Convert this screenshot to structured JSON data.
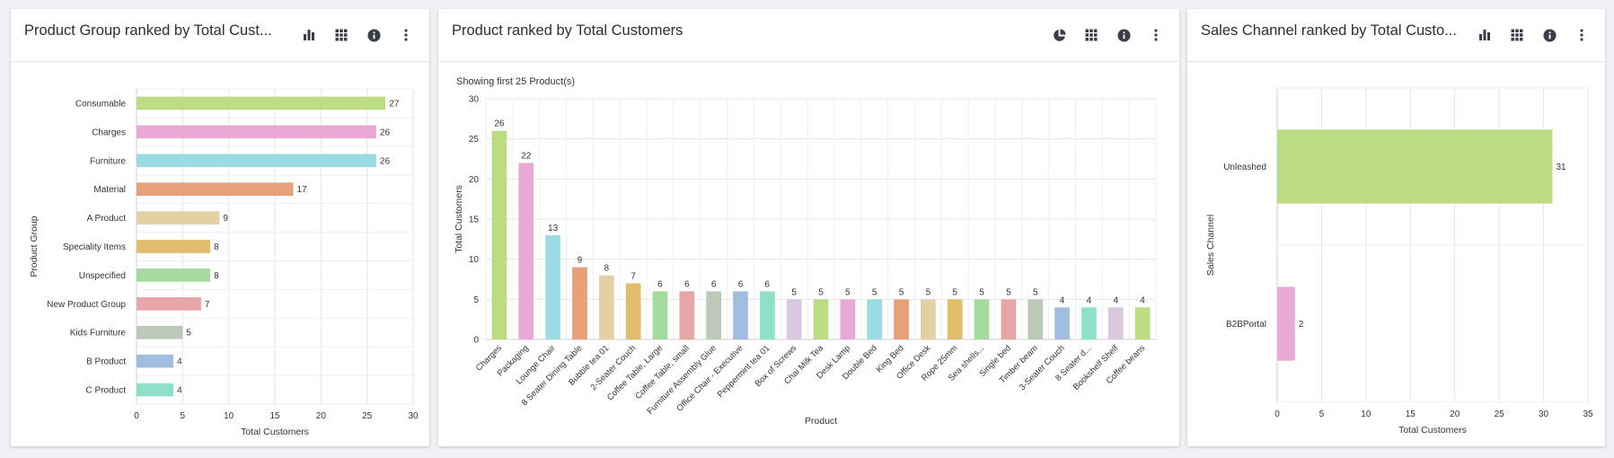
{
  "cards": [
    {
      "title": "Product Group ranked by Total Cust...",
      "toolbar": [
        {
          "icon": "bar-chart-icon",
          "label": "Chart type"
        },
        {
          "icon": "grid-icon",
          "label": "Table view"
        },
        {
          "icon": "info-icon",
          "label": "Info"
        },
        {
          "icon": "more-vertical-icon",
          "label": "More options"
        }
      ]
    },
    {
      "title": "Product ranked by Total Customers",
      "subtitle": "Showing first 25 Product(s)",
      "toolbar": [
        {
          "icon": "pie-chart-icon",
          "label": "Chart type"
        },
        {
          "icon": "grid-icon",
          "label": "Table view"
        },
        {
          "icon": "info-icon",
          "label": "Info"
        },
        {
          "icon": "more-vertical-icon",
          "label": "More options"
        }
      ]
    },
    {
      "title": "Sales Channel ranked by Total Custo...",
      "toolbar": [
        {
          "icon": "bar-chart-icon",
          "label": "Chart type"
        },
        {
          "icon": "grid-icon",
          "label": "Table view"
        },
        {
          "icon": "info-icon",
          "label": "Info"
        },
        {
          "icon": "more-vertical-icon",
          "label": "More options"
        }
      ]
    }
  ],
  "chart_data": [
    {
      "type": "bar",
      "orientation": "horizontal",
      "categories": [
        "Consumable",
        "Charges",
        "Furniture",
        "Material",
        "A Product",
        "Speciality Items",
        "Unspecified",
        "New Product Group",
        "Kids Furniture",
        "B Product",
        "C Product"
      ],
      "values": [
        27,
        26,
        26,
        17,
        9,
        8,
        8,
        7,
        5,
        4,
        4
      ],
      "colors": [
        "#bcdc82",
        "#e8aad4",
        "#9bdce2",
        "#e8a07a",
        "#e3d0a3",
        "#e0bd6c",
        "#a4dca0",
        "#e6a5a6",
        "#bcc8b8",
        "#a0bcde",
        "#8ee0c8"
      ],
      "xlabel": "Total Customers",
      "ylabel": "Product Group",
      "xlim": [
        0,
        30
      ],
      "xticks": [
        0,
        5,
        10,
        15,
        20,
        25,
        30
      ],
      "grid": true,
      "data_labels": true
    },
    {
      "type": "bar",
      "orientation": "vertical",
      "categories": [
        "Charges",
        "Packaging",
        "Lounge Chair",
        "8 Seater Dining Table",
        "Bubble tea 01",
        "2-Seater Couch",
        "Coffee Table, Large",
        "Coffee Table, small",
        "Furniture Assembly Glue",
        "Office Chair - Executive",
        "Peppermint tea 01",
        "Box of Screws",
        "Chai Milk Tea",
        "Desk Lamp",
        "Double Bed",
        "King Bed",
        "Office Desk",
        "Rope 25mm",
        "Sea shells...",
        "Single bed",
        "Timber beam",
        "3-Seater Couch",
        "8 Seater d...",
        "Bookshelf Shelf",
        "Coffee beans"
      ],
      "values": [
        26,
        22,
        13,
        9,
        8,
        7,
        6,
        6,
        6,
        6,
        6,
        5,
        5,
        5,
        5,
        5,
        5,
        5,
        5,
        5,
        5,
        4,
        4,
        4,
        4
      ],
      "colors": [
        "#bcdc82",
        "#e8aad4",
        "#9bdce2",
        "#e8a07a",
        "#e3d0a3",
        "#e0bd6c",
        "#a4dca0",
        "#e6a5a6",
        "#bcc8b8",
        "#a0bcde",
        "#8ee0c8",
        "#d8c8e0",
        "#bcdc82",
        "#e8aad4",
        "#9bdce2",
        "#e8a07a",
        "#e3d0a3",
        "#e0bd6c",
        "#a4dca0",
        "#e6a5a6",
        "#bcc8b8",
        "#a0bcde",
        "#8ee0c8",
        "#d8c8e0",
        "#bcdc82"
      ],
      "xlabel": "Product",
      "ylabel": "Total Customers",
      "ylim": [
        0,
        30
      ],
      "yticks": [
        0,
        5,
        10,
        15,
        20,
        25,
        30
      ],
      "grid": true,
      "data_labels": true
    },
    {
      "type": "bar",
      "orientation": "horizontal",
      "categories": [
        "Unleashed",
        "B2BPortal"
      ],
      "values": [
        31,
        2
      ],
      "colors": [
        "#bcdc82",
        "#e8aad4"
      ],
      "xlabel": "Total Customers",
      "ylabel": "Sales Channel",
      "xlim": [
        0,
        35
      ],
      "xticks": [
        0,
        5,
        10,
        15,
        20,
        25,
        30,
        35
      ],
      "grid": true,
      "data_labels": true
    }
  ]
}
